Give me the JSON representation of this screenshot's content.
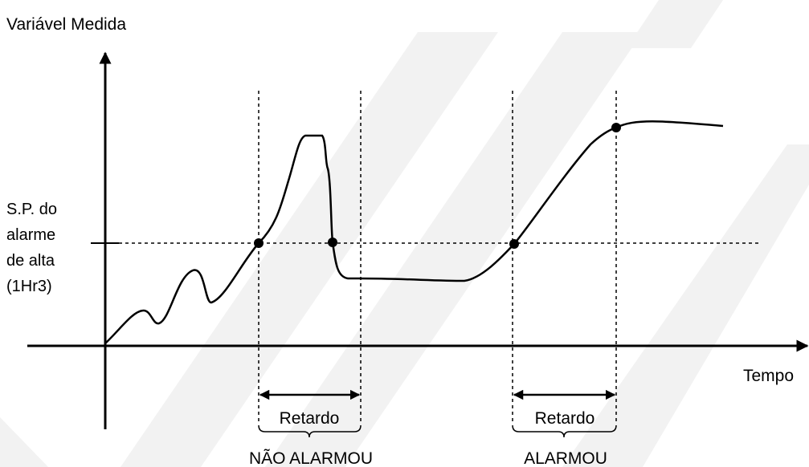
{
  "diagram": {
    "y_axis_label": "Variável Medida",
    "x_axis_label": "Tempo",
    "setpoint_label": [
      "S.P. do",
      "alarme",
      "de alta",
      "(1Hr3)"
    ],
    "delay_label": "Retardo",
    "outcomes": {
      "not_alarmed": "NÃO ALARMOU",
      "alarmed": "ALARMOU"
    }
  },
  "colors": {
    "ink": "#000000",
    "watermark": "#f2f2f2",
    "background": "#ffffff"
  }
}
